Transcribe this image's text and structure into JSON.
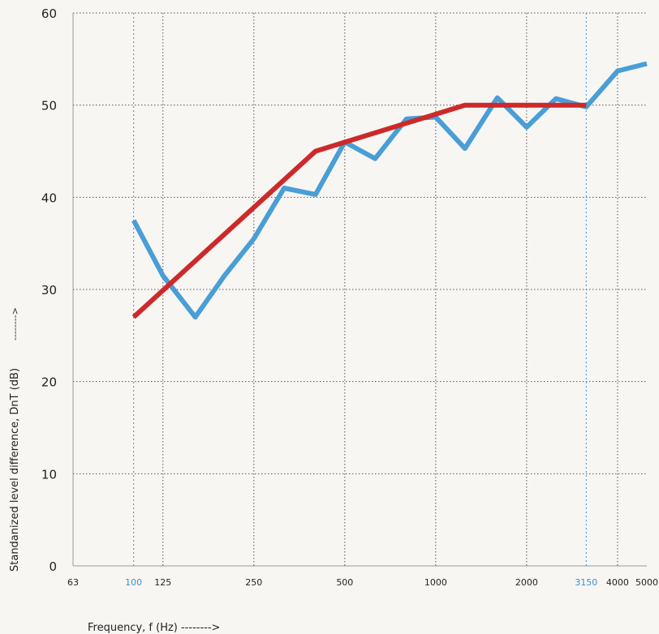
{
  "chart_data": {
    "type": "line",
    "xscale": "log",
    "xlabel": "Frequency, f (Hz) -------->",
    "ylabel": "Standanized level difference, DnT (dB)",
    "ylabel_arrow": "-------->",
    "xlim": [
      63,
      5000
    ],
    "ylim": [
      0,
      60
    ],
    "grid": true,
    "x_ticks": [
      {
        "value": 63,
        "label": "63",
        "color": "#222222"
      },
      {
        "value": 100,
        "label": "100",
        "color": "#3a8fd0"
      },
      {
        "value": 125,
        "label": "125",
        "color": "#222222"
      },
      {
        "value": 250,
        "label": "250",
        "color": "#222222"
      },
      {
        "value": 500,
        "label": "500",
        "color": "#222222"
      },
      {
        "value": 1000,
        "label": "1000",
        "color": "#222222"
      },
      {
        "value": 2000,
        "label": "2000",
        "color": "#222222"
      },
      {
        "value": 3150,
        "label": "3150",
        "color": "#3a8fd0"
      },
      {
        "value": 4000,
        "label": "4000",
        "color": "#222222"
      },
      {
        "value": 5000,
        "label": "5000",
        "color": "#222222"
      }
    ],
    "y_ticks": [
      {
        "value": 0,
        "label": "0"
      },
      {
        "value": 10,
        "label": "10"
      },
      {
        "value": 20,
        "label": "20"
      },
      {
        "value": 30,
        "label": "30"
      },
      {
        "value": 40,
        "label": "40"
      },
      {
        "value": 50,
        "label": "50"
      },
      {
        "value": 60,
        "label": "60"
      }
    ],
    "x_gridlines": [
      100,
      125,
      250,
      500,
      1000,
      2000,
      3150,
      4000
    ],
    "x_gridlines_blue": [
      100,
      3150
    ],
    "series": [
      {
        "color": "#4a9ed6",
        "points": [
          {
            "x": 100,
            "y": 37.5
          },
          {
            "x": 125,
            "y": 31.5
          },
          {
            "x": 160,
            "y": 27
          },
          {
            "x": 200,
            "y": 31.5
          },
          {
            "x": 250,
            "y": 35.5
          },
          {
            "x": 315,
            "y": 41
          },
          {
            "x": 400,
            "y": 40.3
          },
          {
            "x": 500,
            "y": 46
          },
          {
            "x": 630,
            "y": 44.2
          },
          {
            "x": 800,
            "y": 48.5
          },
          {
            "x": 1000,
            "y": 48.7
          },
          {
            "x": 1250,
            "y": 45.3
          },
          {
            "x": 1600,
            "y": 50.8
          },
          {
            "x": 2000,
            "y": 47.6
          },
          {
            "x": 2500,
            "y": 50.7
          },
          {
            "x": 3150,
            "y": 49.8
          },
          {
            "x": 4000,
            "y": 53.7
          },
          {
            "x": 5000,
            "y": 54.5
          }
        ]
      },
      {
        "color": "#cc2a2a",
        "points": [
          {
            "x": 100,
            "y": 27
          },
          {
            "x": 400,
            "y": 45
          },
          {
            "x": 1250,
            "y": 50
          },
          {
            "x": 3150,
            "y": 50
          }
        ]
      }
    ]
  }
}
